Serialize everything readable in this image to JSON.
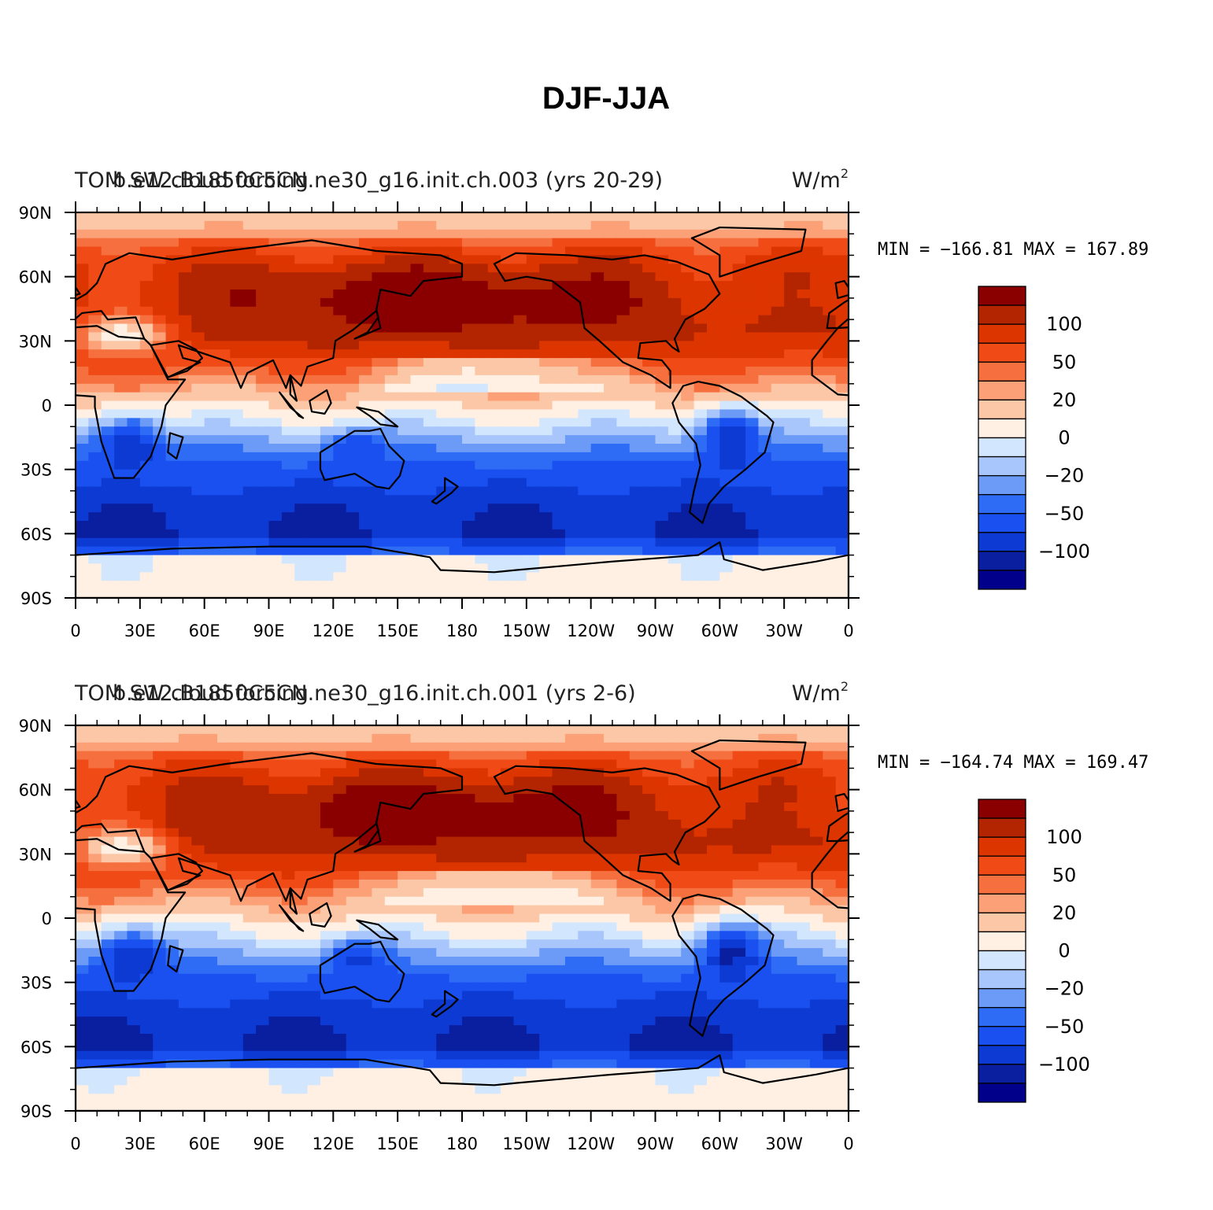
{
  "main_title": "DJF-JJA",
  "colors": [
    "#00008b",
    "#0a1fa0",
    "#0d3ad2",
    "#1a50f0",
    "#2f6cf5",
    "#6c9af7",
    "#a8c6fb",
    "#d2e6fd",
    "#fff0e3",
    "#fcc7a6",
    "#fba077",
    "#f6703f",
    "#f04a17",
    "#dd3500",
    "#b32400",
    "#8a0000"
  ],
  "colorbar_labels": [
    "100",
    "50",
    "20",
    "0",
    "−20",
    "−50",
    "−100"
  ],
  "y_ticks": [
    "90N",
    "60N",
    "30N",
    "0",
    "30S",
    "60S",
    "90S"
  ],
  "x_ticks": [
    "0",
    "30E",
    "60E",
    "90E",
    "120E",
    "150E",
    "180",
    "150W",
    "120W",
    "90W",
    "60W",
    "30W",
    "0"
  ],
  "panels": [
    {
      "left_title": "TOM SW cloud forcing",
      "center_title": "b.e12.B1850C5CN.ne30_g16.init.ch.003 (yrs 20-29)",
      "units": "W/m",
      "units_sup": "2",
      "stats": "MIN = −166.81  MAX = 167.89",
      "chart_data": {
        "type": "heatmap",
        "variable": "TOM SW cloud forcing",
        "case": "b.e12.B1850C5CN.ne30_g16.init.ch.003 (yrs 20-29)",
        "season": "DJF-JJA",
        "units": "W/m2",
        "min": -166.81,
        "max": 167.89,
        "contour_levels": [
          -140,
          -120,
          -100,
          -80,
          -65,
          -50,
          -35,
          -20,
          -10,
          0,
          10,
          20,
          35,
          50,
          65,
          80,
          100,
          120,
          140
        ]
      }
    },
    {
      "left_title": "TOM SW cloud forcing",
      "center_title": "b.e12.B1850C5CN.ne30_g16.init.ch.001 (yrs 2-6)",
      "units": "W/m",
      "units_sup": "2",
      "stats": "MIN = −164.74  MAX = 169.47",
      "chart_data": {
        "type": "heatmap",
        "variable": "TOM SW cloud forcing",
        "case": "b.e12.B1850C5CN.ne30_g16.init.ch.001 (yrs 2-6)",
        "season": "DJF-JJA",
        "units": "W/m2",
        "min": -164.74,
        "max": 169.47,
        "contour_levels": [
          -140,
          -120,
          -100,
          -80,
          -65,
          -50,
          -35,
          -20,
          -10,
          0,
          10,
          20,
          35,
          50,
          65,
          80,
          100,
          120,
          140
        ]
      }
    }
  ]
}
